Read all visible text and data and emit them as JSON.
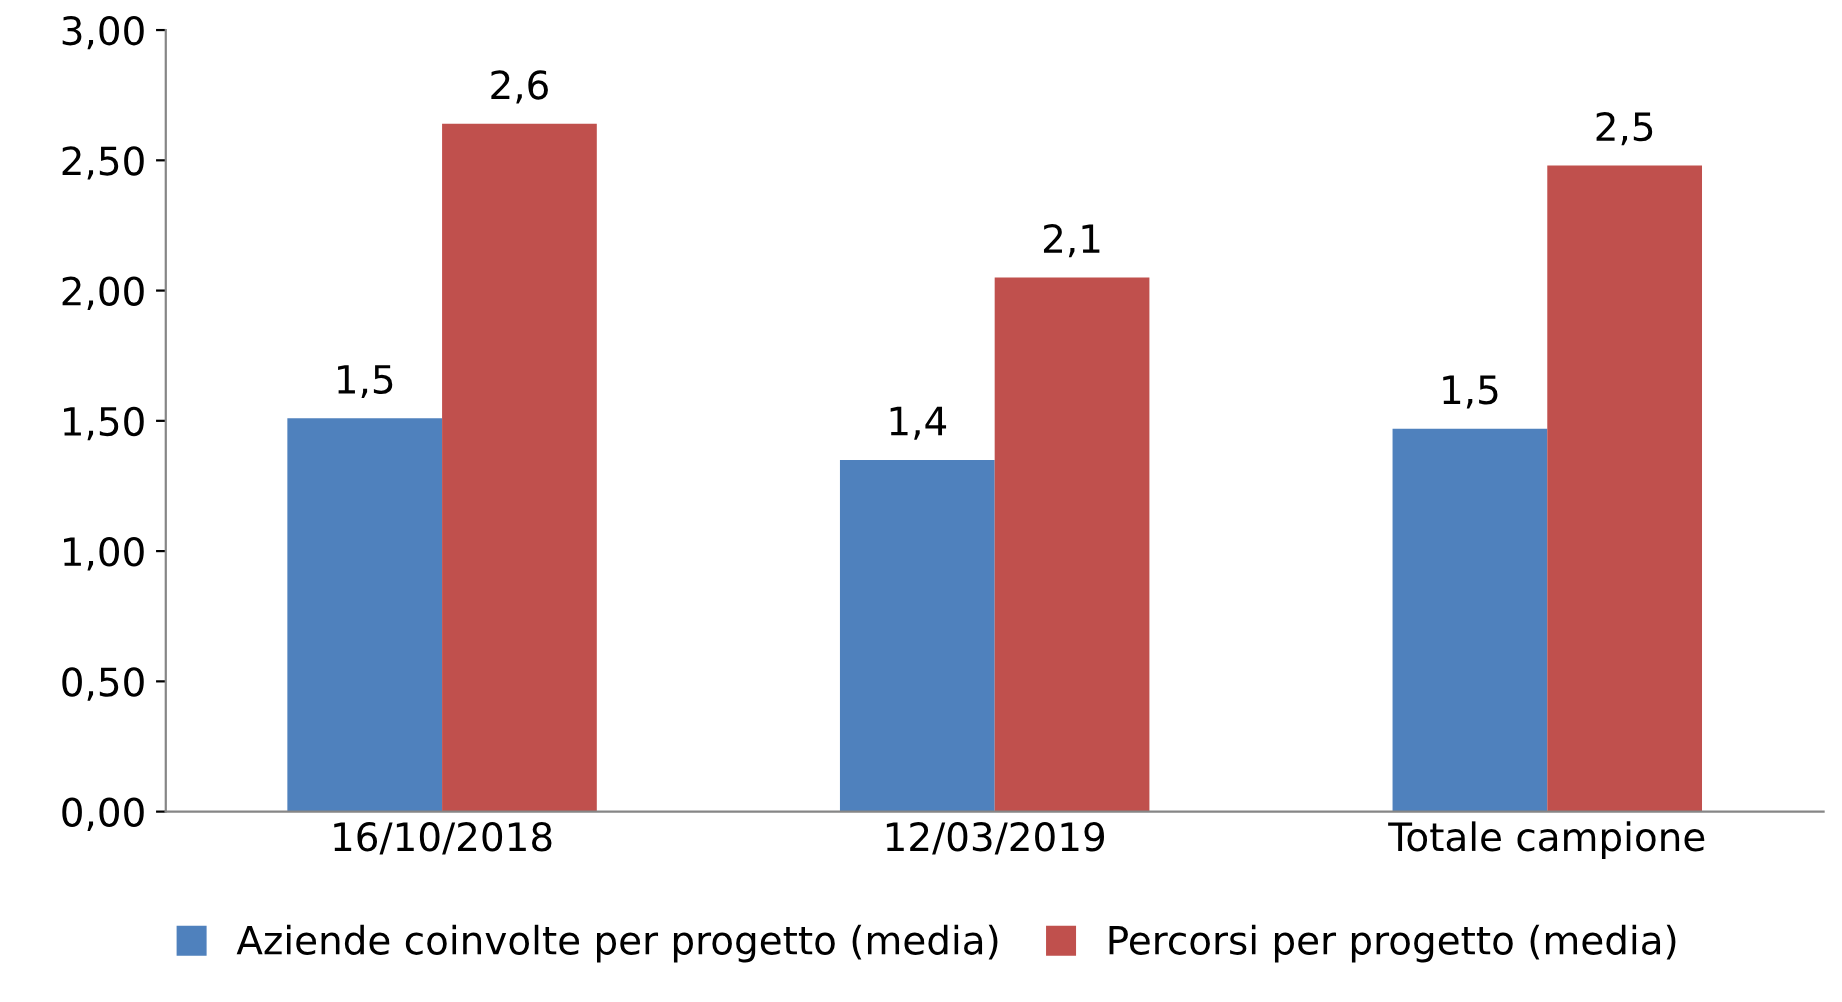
{
  "chart_data": {
    "type": "bar",
    "categories": [
      "16/10/2018",
      "12/03/2019",
      "Totale campione"
    ],
    "series": [
      {
        "name": "Aziende coinvolte per progetto (media)",
        "color": "#4f81bd",
        "values": [
          1.51,
          1.35,
          1.47
        ],
        "value_labels": [
          "1,5",
          "1,4",
          "1,5"
        ]
      },
      {
        "name": "Percorsi per progetto (media)",
        "color": "#c0504d",
        "values": [
          2.64,
          2.05,
          2.48
        ],
        "value_labels": [
          "2,6",
          "2,1",
          "2,5"
        ]
      }
    ],
    "ylim": [
      0,
      3
    ],
    "yticks": [
      {
        "value": 0,
        "label": "0,00"
      },
      {
        "value": 0.5,
        "label": "0,50"
      },
      {
        "value": 1,
        "label": "1,00"
      },
      {
        "value": 1.5,
        "label": "1,50"
      },
      {
        "value": 2,
        "label": "2,00"
      },
      {
        "value": 2.5,
        "label": "2,50"
      },
      {
        "value": 3,
        "label": "3,00"
      }
    ],
    "grid": false,
    "legend": "bottom"
  }
}
